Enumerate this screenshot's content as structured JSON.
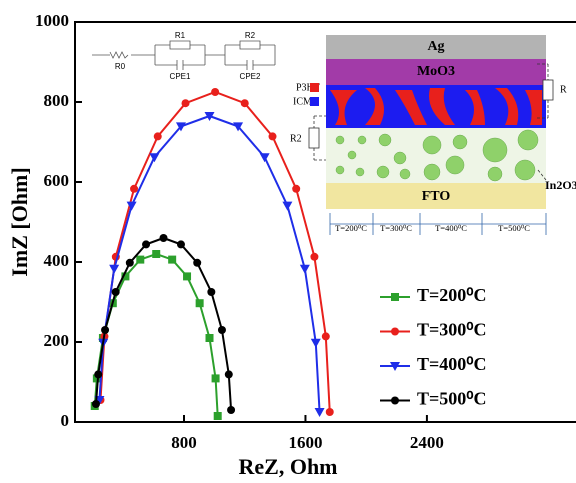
{
  "chart_data": {
    "type": "line",
    "xlabel": "ReZ, Ohm",
    "ylabel": "ImZ [Ohm]",
    "xlim": [
      82,
      3382
    ],
    "ylim": [
      0,
      1000
    ],
    "xticks": [
      800,
      1600,
      2400
    ],
    "yticks": [
      0,
      200,
      400,
      600,
      800,
      1000
    ],
    "series": [
      {
        "name": "T=200⁰C",
        "color": "#2ca02c",
        "marker": "square",
        "x": [
          212,
          226,
          266,
          331,
          414,
          512,
          617,
          722,
          820,
          903,
          968,
          1008,
          1022
        ],
        "values": [
          40,
          109,
          210,
          297,
          364,
          406,
          420,
          406,
          364,
          297,
          210,
          109,
          15
        ]
      },
      {
        "name": "T=300⁰C",
        "color": "#e8201c",
        "marker": "circle",
        "x": [
          250,
          276,
          351,
          471,
          627,
          810,
          1005,
          1200,
          1383,
          1539,
          1659,
          1734,
          1760
        ],
        "values": [
          55,
          214,
          413,
          583,
          714,
          797,
          825,
          797,
          714,
          583,
          413,
          214,
          25
        ]
      },
      {
        "name": "T=400⁰C",
        "color": "#1f2ee8",
        "marker": "triangle-down",
        "x": [
          243,
          268,
          340,
          455,
          605,
          780,
          968,
          1156,
          1331,
          1481,
          1596,
          1668,
          1693
        ],
        "values": [
          55,
          198,
          383,
          541,
          662,
          739,
          765,
          739,
          662,
          541,
          383,
          198,
          25
        ]
      },
      {
        "name": "T=500⁰C",
        "color": "#000000",
        "marker": "circle",
        "x": [
          220,
          235,
          280,
          350,
          443,
          550,
          665,
          780,
          887,
          980,
          1050,
          1095,
          1110
        ],
        "values": [
          45,
          119,
          230,
          325,
          398,
          444,
          460,
          444,
          398,
          325,
          230,
          119,
          30
        ]
      }
    ],
    "circuit_labels": [
      "R0",
      "R1",
      "R2",
      "CPE1",
      "CPE2"
    ],
    "schematic": {
      "layers": [
        "Ag",
        "MoO3",
        "FTO"
      ],
      "legend": [
        "P3HT",
        "ICMA"
      ],
      "side_labels": [
        "R2",
        "R",
        "In2O3"
      ],
      "temperatures": [
        "T=200⁰C",
        "T=300⁰C",
        "T=400⁰C",
        "T=500⁰C"
      ]
    }
  }
}
